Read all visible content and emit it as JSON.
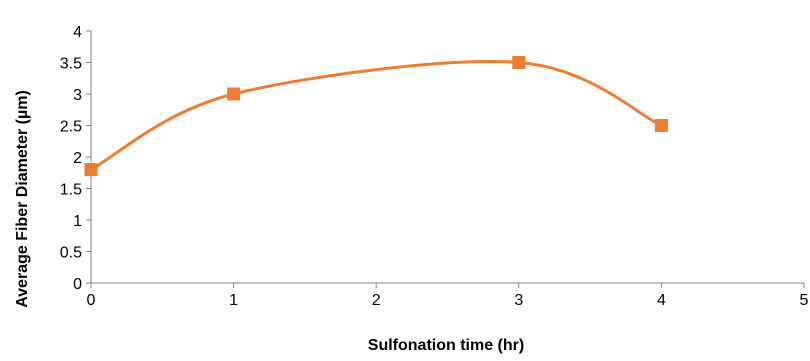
{
  "chart_data": {
    "type": "line",
    "title": "",
    "xlabel": "Sulfonation time (hr)",
    "ylabel": "Average  Fiber Diameter (µm)",
    "x": [
      0,
      1,
      3,
      4
    ],
    "series": [
      {
        "name": "",
        "values": [
          1.8,
          3.0,
          3.5,
          2.5
        ]
      }
    ],
    "xlim": [
      0,
      5
    ],
    "ylim": [
      0,
      4
    ],
    "x_ticks": [
      "0",
      "1",
      "2",
      "3",
      "4",
      "5"
    ],
    "y_ticks": [
      "0",
      "0.5",
      "1",
      "1.5",
      "2",
      "2.5",
      "3",
      "3.5",
      "4"
    ],
    "smooth": true,
    "marker": "square",
    "grid": false,
    "legend": "none",
    "colors": {
      "series": "#ED7D31",
      "axis": "#868686"
    }
  }
}
